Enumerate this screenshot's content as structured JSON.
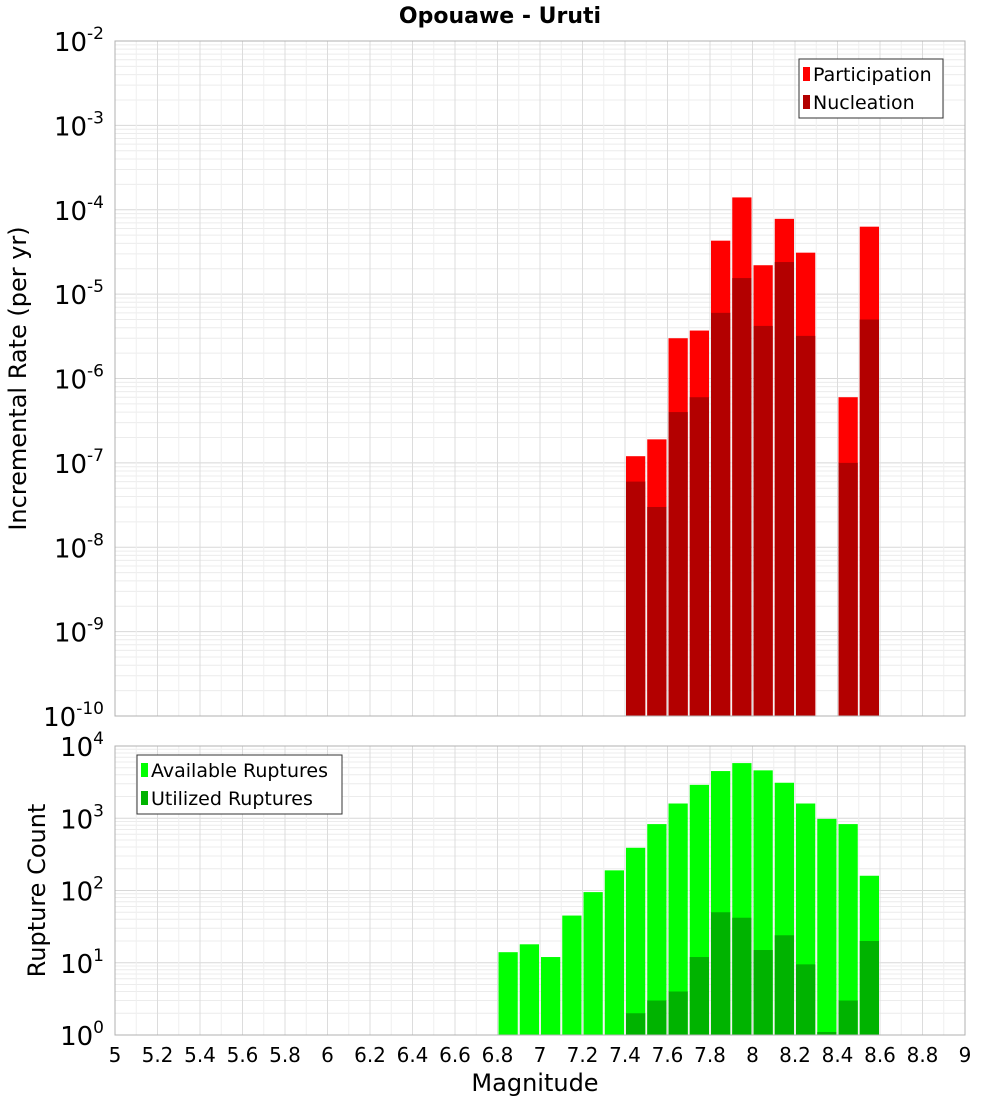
{
  "page": {
    "title": "Opouawe - Uruti"
  },
  "chart_data": [
    {
      "type": "bar",
      "title": "Opouawe - Uruti",
      "xlabel": "",
      "ylabel": "Incremental Rate (per yr)",
      "y_scale": "log",
      "ylim": [
        1e-10,
        0.01
      ],
      "xlim": [
        5.0,
        9.0
      ],
      "y_tick_bases": [
        "10",
        "10",
        "10",
        "10",
        "10",
        "10",
        "10",
        "10",
        "10"
      ],
      "y_tick_exponents": [
        "-10",
        "-9",
        "-8",
        "-7",
        "-6",
        "-5",
        "-4",
        "-3",
        "-2"
      ],
      "y_tick_values": [
        1e-10,
        1e-09,
        1e-08,
        1e-07,
        1e-06,
        1e-05,
        0.0001,
        0.001,
        0.01
      ],
      "grid": true,
      "legend_position": "top-right",
      "bar_width": 0.1,
      "x": [
        7.45,
        7.55,
        7.65,
        7.75,
        7.85,
        7.95,
        8.05,
        8.15,
        8.25,
        8.35,
        8.45,
        8.55
      ],
      "series": [
        {
          "name": "Participation",
          "color": "#ff0000",
          "values": [
            1.2e-07,
            1.9e-07,
            3e-06,
            3.7e-06,
            4.3e-05,
            0.00014,
            2.2e-05,
            7.8e-05,
            3.1e-05,
            null,
            6e-07,
            6.3e-05
          ]
        },
        {
          "name": "Nucleation",
          "color": "#b30000",
          "values": [
            6e-08,
            3e-08,
            4e-07,
            6e-07,
            6e-06,
            1.55e-05,
            4.2e-06,
            2.4e-05,
            3.2e-06,
            null,
            1e-07,
            5e-06
          ]
        }
      ]
    },
    {
      "type": "bar",
      "title": "",
      "xlabel": "Magnitude",
      "ylabel": "Rupture Count",
      "y_scale": "log",
      "ylim": [
        1,
        10000
      ],
      "xlim": [
        5.0,
        9.0
      ],
      "x_ticks": [
        "5",
        "5.2",
        "5.4",
        "5.6",
        "5.8",
        "6",
        "6.2",
        "6.4",
        "6.6",
        "6.8",
        "7",
        "7.2",
        "7.4",
        "7.6",
        "7.8",
        "8",
        "8.2",
        "8.4",
        "8.6",
        "8.8",
        "9"
      ],
      "y_tick_bases": [
        "10",
        "10",
        "10",
        "10",
        "10"
      ],
      "y_tick_exponents": [
        "0",
        "1",
        "2",
        "3",
        "4"
      ],
      "y_tick_values": [
        1,
        10,
        100,
        1000,
        10000
      ],
      "grid": true,
      "legend_position": "top-left",
      "bar_width": 0.1,
      "x": [
        6.85,
        6.95,
        7.05,
        7.15,
        7.25,
        7.35,
        7.45,
        7.55,
        7.65,
        7.75,
        7.85,
        7.95,
        8.05,
        8.15,
        8.25,
        8.35,
        8.45,
        8.55
      ],
      "series": [
        {
          "name": "Available Ruptures",
          "color": "#00ff00",
          "values": [
            14,
            18,
            12,
            45,
            95,
            190,
            390,
            830,
            1600,
            2900,
            4500,
            5800,
            4600,
            3100,
            1600,
            980,
            830,
            160
          ]
        },
        {
          "name": "Utilized Ruptures",
          "color": "#00b300",
          "values": [
            null,
            null,
            null,
            null,
            null,
            null,
            2,
            3,
            4,
            12,
            50,
            42,
            15,
            24,
            9.5,
            1.1,
            3,
            20
          ]
        }
      ]
    }
  ]
}
